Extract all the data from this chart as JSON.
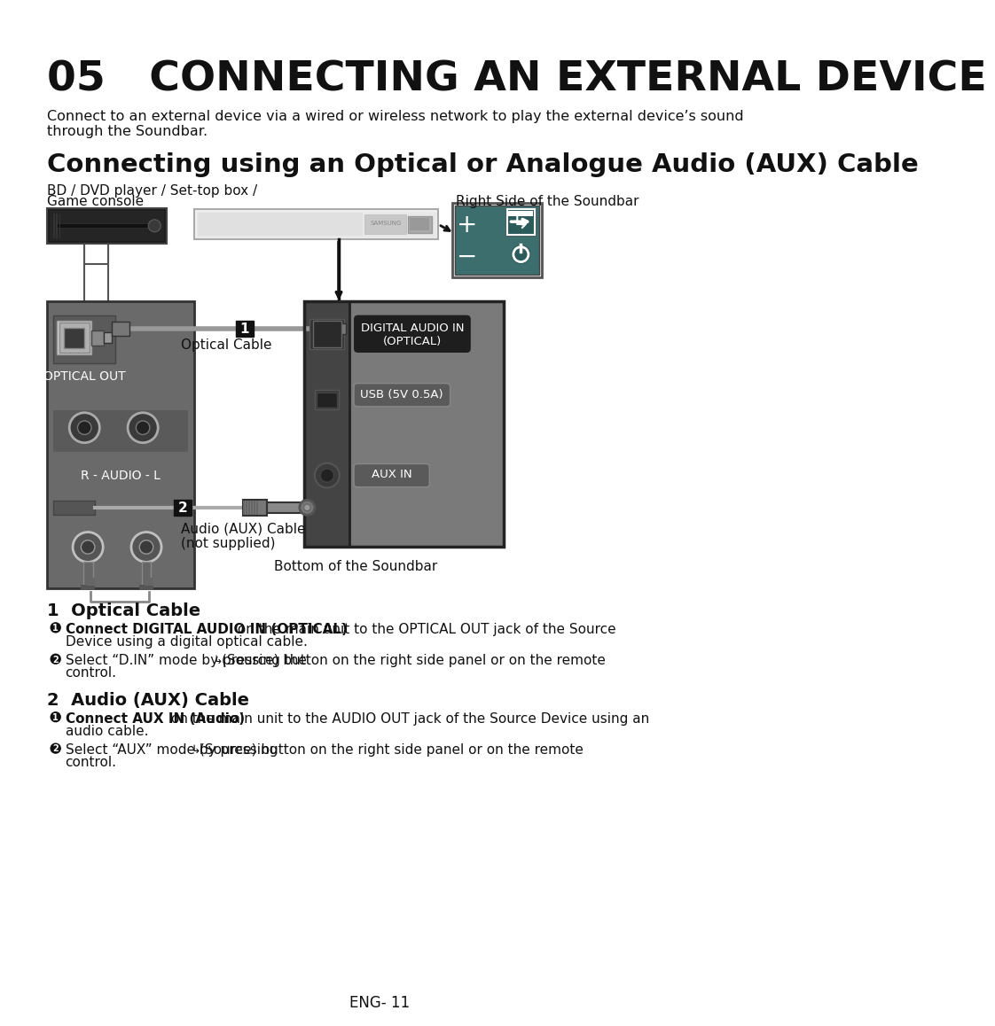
{
  "title": "05   CONNECTING AN EXTERNAL DEVICE",
  "subtitle": "Connecting using an Optical or Analogue Audio (AUX) Cable",
  "intro_text": "Connect to an external device via a wired or wireless network to play the external device’s sound\nthrough the Soundbar.",
  "label_source": "BD / DVD player / Set-top box /\nGame console",
  "label_right_side": "Right Side of the Soundbar",
  "label_optical_cable": "Optical Cable",
  "label_aux_cable": "Audio (AUX) Cable\n(not supplied)",
  "label_bottom": "Bottom of the Soundbar",
  "label_optical_out": "OPTICAL OUT",
  "label_audio": "R - AUDIO - L",
  "label_digital_audio": "DIGITAL AUDIO IN\n(OPTICAL)",
  "label_usb": "USB (5V 0.5A)",
  "label_aux_in": "AUX IN",
  "s1_title": "1  Optical Cable",
  "s1_b1_bold": "Connect DIGITAL AUDIO IN (OPTICAL)",
  "s1_b1_normal": " on the main unit to the OPTICAL OUT jack of the Source\nDevice using a digital optical cable.",
  "s1_b2_normal": "Select “D.IN” mode by pressing the",
  "s1_b2_end": "(Source) button on the right side panel or on the remote\ncontrol.",
  "s2_title": "2  Audio (AUX) Cable",
  "s2_b1_bold": "Connect AUX IN (Audio)",
  "s2_b1_normal": " on the main unit to the AUDIO OUT jack of the Source Device using an\naudio cable.",
  "s2_b2_normal": "Select “AUX” mode by pressing",
  "s2_b2_end": "(Source) button on the right side panel or on the remote\ncontrol.",
  "footer": "ENG- 11",
  "bg_color": "#ffffff"
}
